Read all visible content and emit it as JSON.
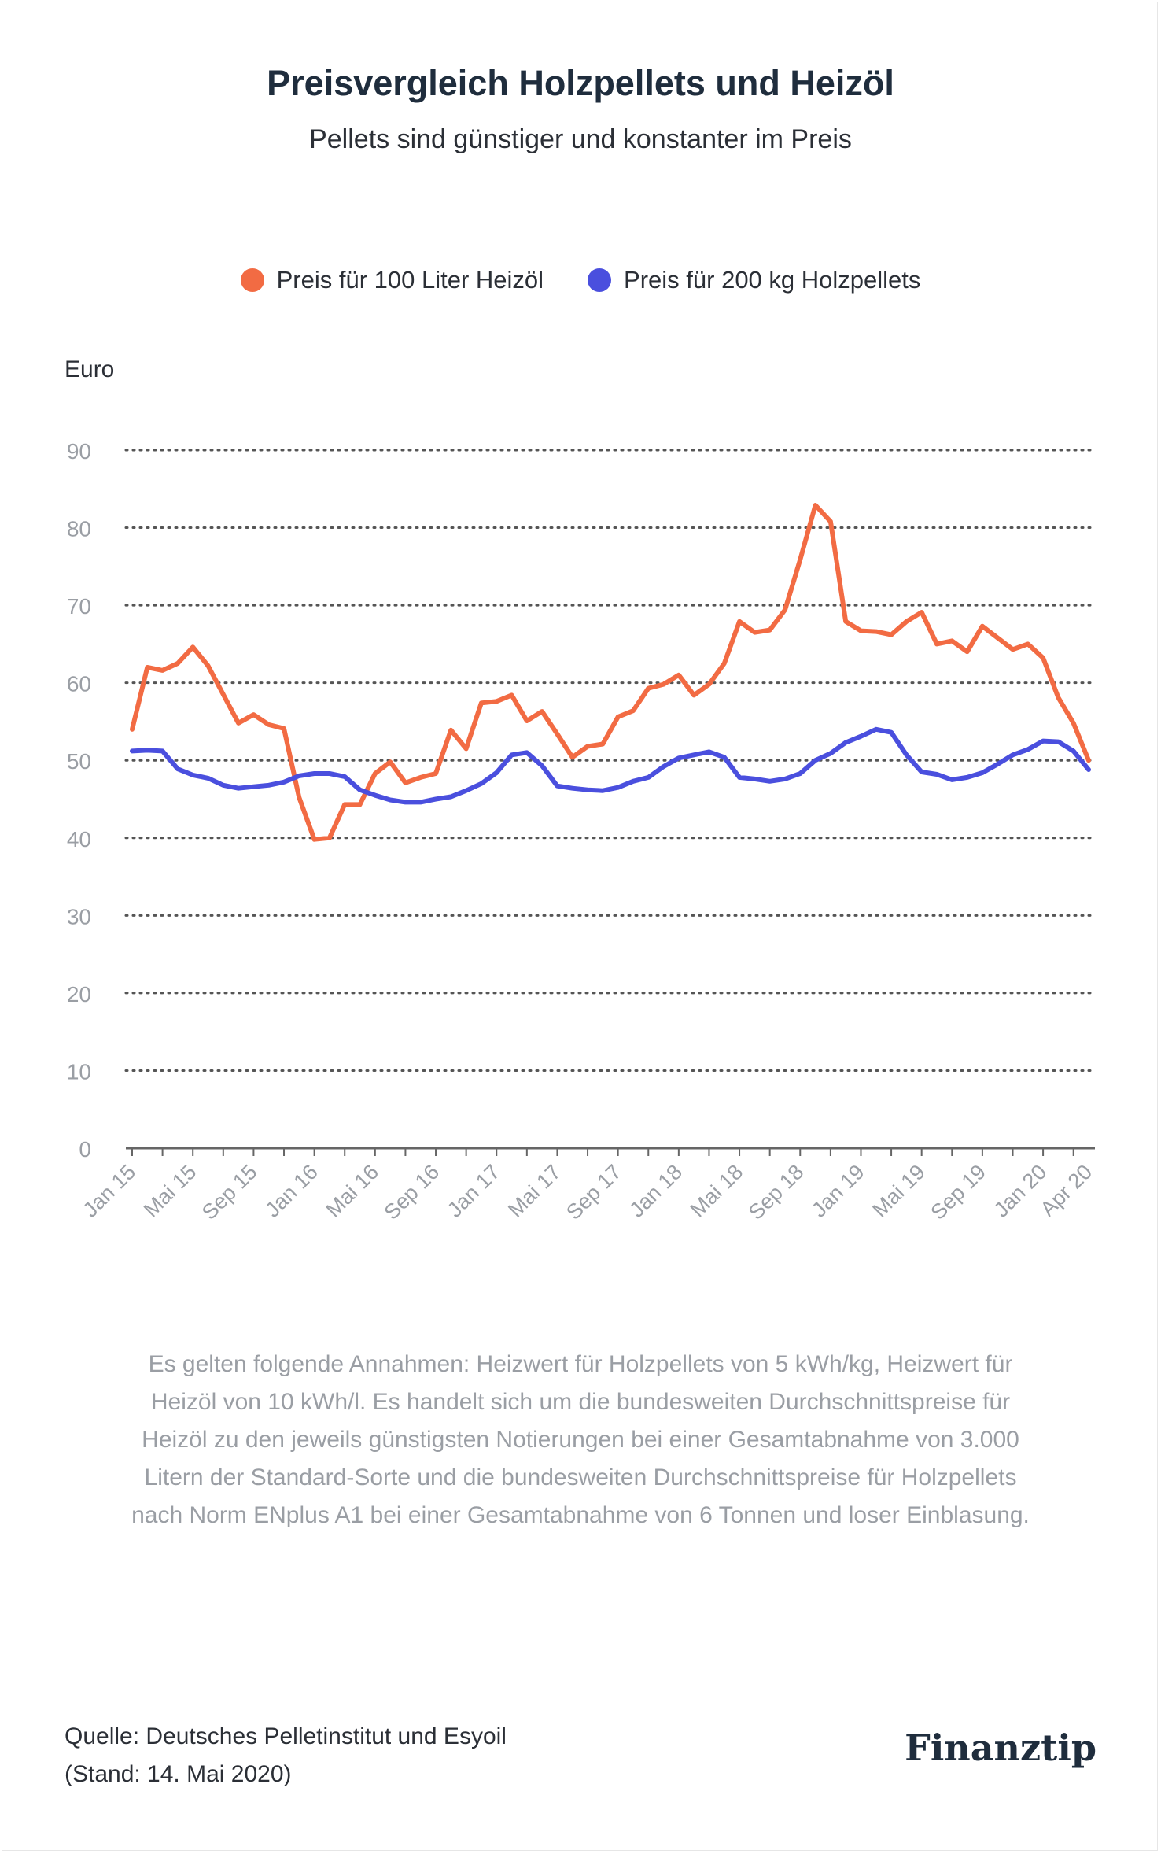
{
  "header": {
    "title": "Preisvergleich Holzpellets und Heizöl",
    "subtitle": "Pellets sind günstiger und konstanter im Preis"
  },
  "footer": {
    "note": "Es gelten folgende Annahmen: Heizwert für Holzpellets von 5 kWh/kg, Heizwert für Heizöl von 10 kWh/l. Es handelt sich um die bundesweiten Durchschnittspreise für Heizöl zu den jeweils günstigsten Notierungen bei einer Gesamtabnahme von 3.000 Litern der Standard-Sorte und die bundesweiten Durchschnittspreise für Holzpellets nach Norm ENplus A1 bei einer Gesamtabnahme von 6 Tonnen und loser Einblasung.",
    "source_line1": "Quelle:  Deutsches Pelletinstitut und Esyoil",
    "source_line2": "(Stand: 14. Mai 2020)",
    "logo": "Finanztip"
  },
  "colors": {
    "oil": "#f26b43",
    "pellets": "#4a4fde",
    "grid": "#555555",
    "axis": "#666666",
    "tick_label": "#9a9ea4"
  },
  "chart_data": {
    "type": "line",
    "title": "Preisvergleich Holzpellets und Heizöl",
    "subtitle": "Pellets sind günstiger und konstanter im Preis",
    "ylabel": "Euro",
    "xlabel": "",
    "ylim": [
      0,
      90
    ],
    "yticks": [
      0,
      10,
      20,
      30,
      40,
      50,
      60,
      70,
      80,
      90
    ],
    "grid": true,
    "legend_position": "top-center",
    "x_tick_labels": [
      "Jan 15",
      "Mai 15",
      "Sep 15",
      "Jan 16",
      "Mai 16",
      "Sep 16",
      "Jan 17",
      "Mai 17",
      "Sep 17",
      "Jan 18",
      "Mai 18",
      "Sep 18",
      "Jan 19",
      "Mai 19",
      "Sep 19",
      "Jan 20",
      "Apr 20"
    ],
    "x_tick_months": [
      0,
      4,
      8,
      12,
      16,
      20,
      24,
      28,
      32,
      36,
      40,
      44,
      48,
      52,
      56,
      60,
      63
    ],
    "series": [
      {
        "name": "Preis für 100 Liter Heizöl",
        "color": "#f26b43",
        "values": [
          54.0,
          62.0,
          61.6,
          62.5,
          64.6,
          62.2,
          58.5,
          54.8,
          55.9,
          54.6,
          54.1,
          45.2,
          39.8,
          40.0,
          44.3,
          44.3,
          48.3,
          49.8,
          47.1,
          47.8,
          48.3,
          53.9,
          51.5,
          57.4,
          57.6,
          58.4,
          55.1,
          56.3,
          53.4,
          50.4,
          51.8,
          52.1,
          55.6,
          56.4,
          59.3,
          59.8,
          61.0,
          58.4,
          59.8,
          62.5,
          67.9,
          66.5,
          66.8,
          69.4,
          75.9,
          82.9,
          80.8,
          67.9,
          66.7,
          66.6,
          66.2,
          67.9,
          69.1,
          65.0,
          65.4,
          64.0,
          67.3,
          65.8,
          64.3,
          65.0,
          63.2,
          58.1,
          54.8,
          50.0
        ]
      },
      {
        "name": "Preis für 200 kg Holzpellets",
        "color": "#4a4fde",
        "values": [
          51.2,
          51.3,
          51.2,
          48.9,
          48.1,
          47.7,
          46.8,
          46.4,
          46.6,
          46.8,
          47.2,
          48.0,
          48.3,
          48.3,
          47.9,
          46.2,
          45.5,
          44.9,
          44.6,
          44.6,
          45.0,
          45.3,
          46.1,
          47.0,
          48.4,
          50.7,
          51.0,
          49.3,
          46.7,
          46.4,
          46.2,
          46.1,
          46.5,
          47.3,
          47.8,
          49.2,
          50.3,
          50.7,
          51.1,
          50.4,
          47.8,
          47.6,
          47.3,
          47.6,
          48.3,
          50.0,
          50.9,
          52.3,
          53.1,
          54.0,
          53.6,
          50.7,
          48.5,
          48.2,
          47.5,
          47.8,
          48.4,
          49.5,
          50.7,
          51.4,
          52.5,
          52.4,
          51.2,
          48.8
        ]
      }
    ]
  }
}
